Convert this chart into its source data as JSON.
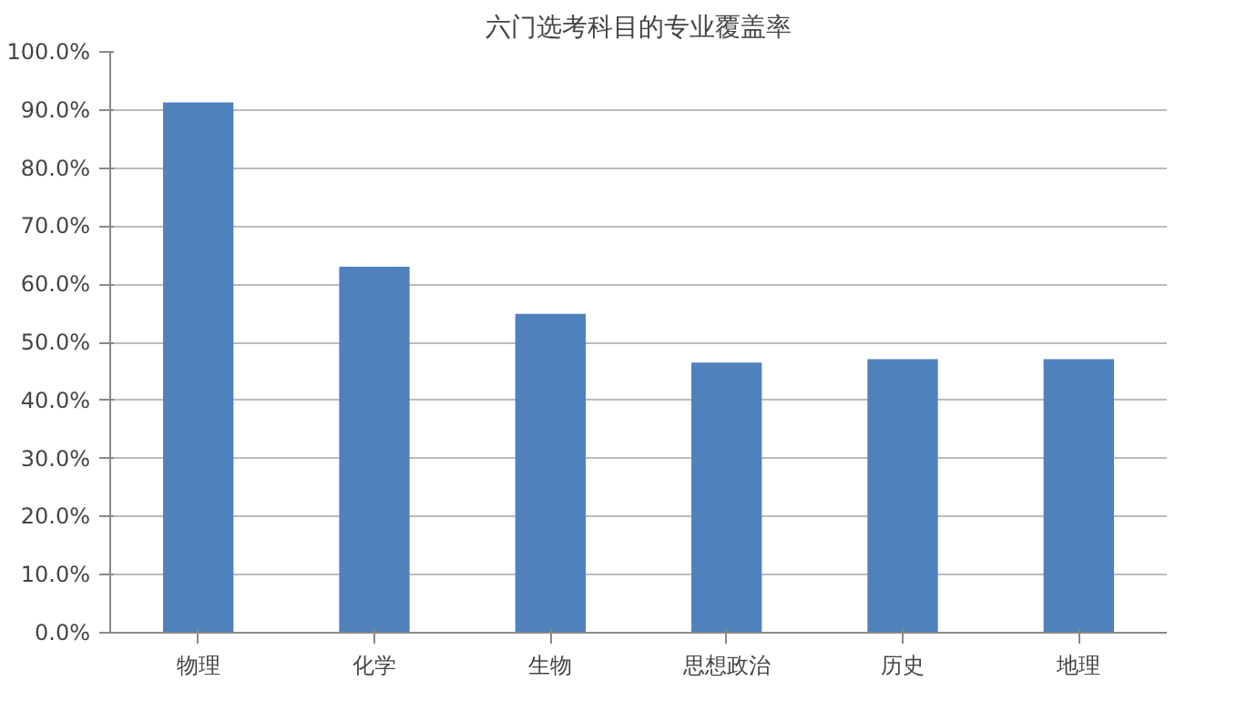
{
  "chart_data": {
    "type": "bar",
    "title": "六门选考科目的专业覆盖率",
    "categories": [
      "物理",
      "化学",
      "生物",
      "思想政治",
      "历史",
      "地理"
    ],
    "values": [
      91.3,
      63.0,
      54.9,
      46.5,
      47.1,
      47.1
    ],
    "color": "#4f81bd",
    "ylim": [
      0,
      100
    ],
    "yticks": [
      {
        "value": 0,
        "label": "0.0%"
      },
      {
        "value": 10,
        "label": "10.0%"
      },
      {
        "value": 20,
        "label": "20.0%"
      },
      {
        "value": 30,
        "label": "30.0%"
      },
      {
        "value": 40,
        "label": "40.0%"
      },
      {
        "value": 50,
        "label": "50.0%"
      },
      {
        "value": 60,
        "label": "60.0%"
      },
      {
        "value": 70,
        "label": "70.0%"
      },
      {
        "value": 80,
        "label": "80.0%"
      },
      {
        "value": 90,
        "label": "90.0%"
      },
      {
        "value": 100,
        "label": "100.0%"
      }
    ],
    "grid": "y"
  }
}
